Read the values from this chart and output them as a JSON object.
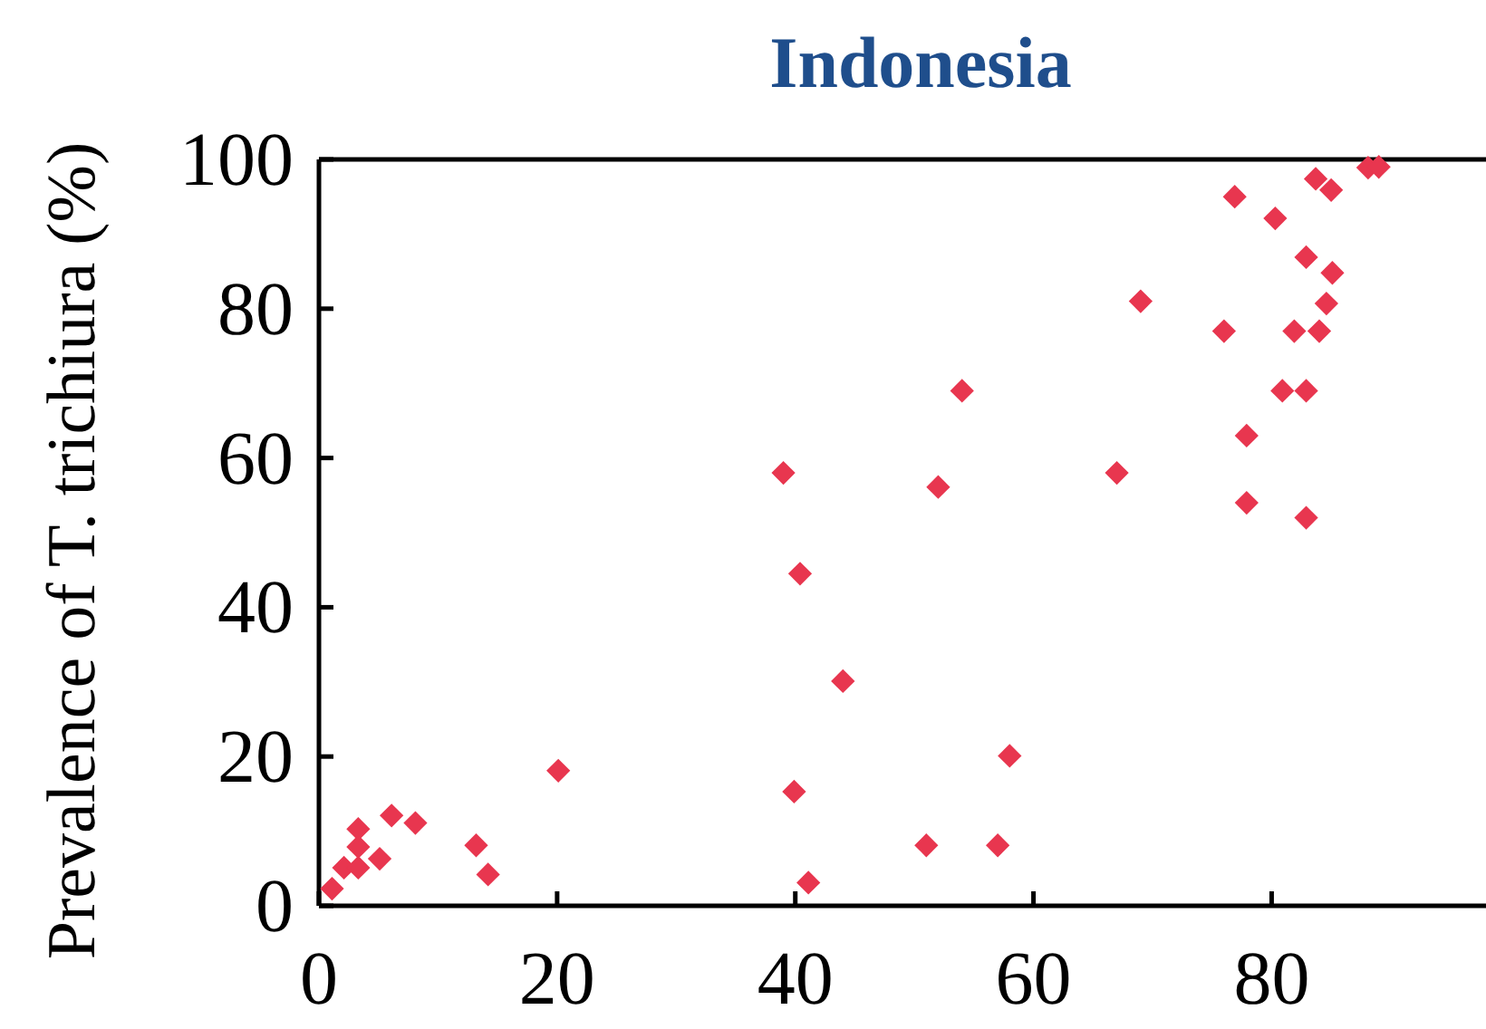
{
  "chart_data": {
    "type": "scatter",
    "title": "Indonesia",
    "ylabel": "Prevalence of T. trichiura (%)",
    "x": [
      1.1,
      2.1,
      3.3,
      3.3,
      3.3,
      5.1,
      6.1,
      8.1,
      13.2,
      14.2,
      20.1,
      39.9,
      41.1,
      54.0,
      39.0,
      52.0,
      67.0,
      40.4,
      44.0,
      58.0,
      51.0,
      57.0,
      88.1,
      89.0,
      83.7,
      85.0,
      76.9,
      80.3,
      82.9,
      85.1,
      69.0,
      84.6,
      76.0,
      81.9,
      84.0,
      80.9,
      82.9,
      77.9,
      77.9,
      82.9
    ],
    "series": [
      {
        "color": "#e8364f",
        "values": [
          2.3,
          5.1,
          5.1,
          7.9,
          10.3,
          6.3,
          12.1,
          11.1,
          8.1,
          4.2,
          18.1,
          15.3,
          3.1,
          69.0,
          58.0,
          56.1,
          58.0,
          44.5,
          30.1,
          20.1,
          8.1,
          8.1,
          98.9,
          99.0,
          97.4,
          95.9,
          95.0,
          92.1,
          86.9,
          84.8,
          81.0,
          80.7,
          77.0,
          77.0,
          77.0,
          69.0,
          69.0,
          63.0,
          54.0,
          52.0
        ]
      }
    ],
    "xlim": [
      0,
      98
    ],
    "xticks": [
      0,
      20,
      40,
      60,
      80
    ],
    "ylim": [
      0,
      100
    ],
    "yticks": [
      0,
      20,
      40,
      60,
      80,
      100
    ],
    "marker": "diamond",
    "grid": false
  }
}
